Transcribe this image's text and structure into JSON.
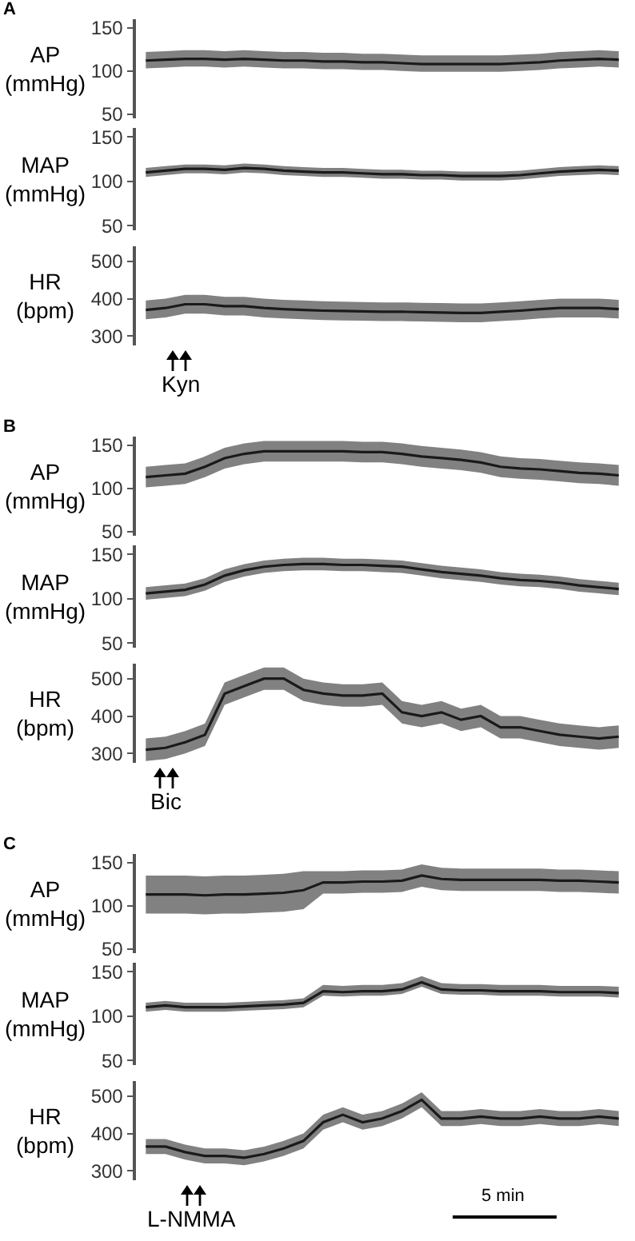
{
  "chart_data": [
    {
      "type": "line",
      "title": "A",
      "ylabel": "AP\n(mmHg)",
      "categories": [
        null,
        null,
        null,
        null,
        null,
        null,
        null,
        null,
        null,
        null,
        null,
        null,
        null,
        null,
        null,
        null,
        null,
        null,
        null,
        null,
        null,
        null,
        null,
        null,
        null
      ],
      "ylim": [
        45,
        160
      ],
      "yticks": [
        50,
        100,
        150
      ],
      "tick_labels": "y",
      "series": [
        {
          "color": "#1a1a1a",
          "values": [
            112,
            113,
            114,
            114,
            113,
            114,
            113,
            112,
            112,
            111,
            111,
            110,
            110,
            109,
            108,
            108,
            108,
            108,
            108,
            109,
            110,
            112,
            113,
            114,
            113
          ],
          "lower": [
            103,
            104,
            105,
            105,
            104,
            105,
            104,
            103,
            103,
            102,
            102,
            101,
            101,
            100,
            99,
            99,
            99,
            99,
            99,
            100,
            101,
            103,
            104,
            105,
            104
          ],
          "upper": [
            122,
            123,
            124,
            124,
            123,
            124,
            123,
            122,
            122,
            121,
            121,
            120,
            120,
            119,
            118,
            118,
            118,
            118,
            118,
            119,
            120,
            122,
            123,
            124,
            123
          ]
        }
      ]
    },
    {
      "type": "line",
      "ylabel": "MAP\n(mmHg)",
      "categories": [
        null,
        null,
        null,
        null,
        null,
        null,
        null,
        null,
        null,
        null,
        null,
        null,
        null,
        null,
        null,
        null,
        null,
        null,
        null,
        null,
        null,
        null,
        null,
        null,
        null
      ],
      "ylim": [
        45,
        160
      ],
      "yticks": [
        50,
        100,
        150
      ],
      "tick_labels": "y",
      "series": [
        {
          "color": "#1a1a1a",
          "values": [
            110,
            112,
            114,
            114,
            113,
            115,
            114,
            112,
            111,
            110,
            110,
            109,
            108,
            108,
            107,
            107,
            106,
            106,
            106,
            107,
            109,
            111,
            112,
            113,
            112
          ],
          "lower": [
            105,
            107,
            109,
            109,
            108,
            110,
            109,
            107,
            106,
            105,
            105,
            104,
            103,
            103,
            102,
            102,
            101,
            101,
            101,
            102,
            104,
            106,
            107,
            108,
            107
          ],
          "upper": [
            115,
            117,
            119,
            119,
            118,
            120,
            119,
            117,
            116,
            115,
            115,
            114,
            113,
            113,
            112,
            112,
            111,
            111,
            111,
            112,
            114,
            116,
            117,
            118,
            117
          ]
        }
      ]
    },
    {
      "type": "line",
      "ylabel": "HR\n(bpm)",
      "categories": [
        null,
        null,
        null,
        null,
        null,
        null,
        null,
        null,
        null,
        null,
        null,
        null,
        null,
        null,
        null,
        null,
        null,
        null,
        null,
        null,
        null,
        null,
        null,
        null,
        null
      ],
      "ylim": [
        275,
        540
      ],
      "yticks": [
        300,
        400,
        500
      ],
      "tick_labels": "y",
      "annotations": [
        "Kyn"
      ],
      "series": [
        {
          "color": "#1a1a1a",
          "values": [
            370,
            375,
            385,
            385,
            380,
            380,
            375,
            372,
            370,
            368,
            367,
            366,
            365,
            365,
            364,
            363,
            362,
            362,
            365,
            368,
            372,
            375,
            375,
            375,
            372
          ],
          "lower": [
            345,
            350,
            360,
            360,
            355,
            355,
            350,
            347,
            345,
            343,
            342,
            341,
            340,
            340,
            339,
            338,
            337,
            337,
            340,
            343,
            347,
            350,
            350,
            350,
            347
          ],
          "upper": [
            395,
            400,
            410,
            410,
            405,
            405,
            400,
            397,
            395,
            393,
            392,
            391,
            390,
            390,
            389,
            388,
            387,
            387,
            390,
            393,
            397,
            400,
            400,
            400,
            397
          ]
        }
      ]
    },
    {
      "type": "line",
      "title": "B",
      "ylabel": "AP\n(mmHg)",
      "categories": [
        null,
        null,
        null,
        null,
        null,
        null,
        null,
        null,
        null,
        null,
        null,
        null,
        null,
        null,
        null,
        null,
        null,
        null,
        null,
        null,
        null,
        null,
        null,
        null,
        null
      ],
      "ylim": [
        45,
        160
      ],
      "yticks": [
        50,
        100,
        150
      ],
      "tick_labels": "y",
      "series": [
        {
          "color": "#1a1a1a",
          "values": [
            113,
            115,
            117,
            125,
            135,
            140,
            143,
            143,
            143,
            143,
            143,
            142,
            142,
            140,
            137,
            135,
            133,
            130,
            125,
            123,
            122,
            120,
            118,
            117,
            115
          ],
          "lower": [
            101,
            103,
            105,
            113,
            123,
            128,
            131,
            131,
            131,
            131,
            131,
            130,
            130,
            128,
            125,
            123,
            121,
            118,
            113,
            111,
            110,
            108,
            106,
            105,
            103
          ],
          "upper": [
            125,
            127,
            129,
            137,
            147,
            152,
            155,
            155,
            155,
            155,
            155,
            154,
            154,
            152,
            149,
            147,
            145,
            142,
            137,
            135,
            134,
            132,
            130,
            129,
            127
          ]
        }
      ]
    },
    {
      "type": "line",
      "ylabel": "MAP\n(mmHg)",
      "categories": [
        null,
        null,
        null,
        null,
        null,
        null,
        null,
        null,
        null,
        null,
        null,
        null,
        null,
        null,
        null,
        null,
        null,
        null,
        null,
        null,
        null,
        null,
        null,
        null,
        null
      ],
      "ylim": [
        45,
        160
      ],
      "yticks": [
        50,
        100,
        150
      ],
      "tick_labels": "y",
      "series": [
        {
          "color": "#1a1a1a",
          "values": [
            106,
            108,
            110,
            116,
            126,
            132,
            136,
            138,
            139,
            139,
            138,
            138,
            137,
            136,
            133,
            130,
            128,
            126,
            123,
            121,
            120,
            118,
            115,
            113,
            111
          ],
          "lower": [
            99,
            101,
            103,
            109,
            119,
            125,
            129,
            131,
            132,
            132,
            131,
            131,
            130,
            129,
            126,
            123,
            121,
            119,
            116,
            114,
            113,
            111,
            108,
            106,
            104
          ],
          "upper": [
            113,
            115,
            117,
            123,
            133,
            139,
            143,
            145,
            146,
            146,
            145,
            145,
            144,
            143,
            140,
            137,
            135,
            133,
            130,
            128,
            127,
            125,
            122,
            120,
            118
          ]
        }
      ]
    },
    {
      "type": "line",
      "ylabel": "HR\n(bpm)",
      "categories": [
        null,
        null,
        null,
        null,
        null,
        null,
        null,
        null,
        null,
        null,
        null,
        null,
        null,
        null,
        null,
        null,
        null,
        null,
        null,
        null,
        null,
        null,
        null,
        null,
        null
      ],
      "ylim": [
        275,
        540
      ],
      "yticks": [
        300,
        400,
        500
      ],
      "tick_labels": "y",
      "annotations": [
        "Bic"
      ],
      "series": [
        {
          "color": "#1a1a1a",
          "values": [
            310,
            315,
            330,
            350,
            460,
            480,
            500,
            500,
            470,
            460,
            455,
            455,
            460,
            410,
            400,
            410,
            390,
            400,
            370,
            370,
            360,
            350,
            345,
            340,
            345
          ],
          "lower": [
            280,
            285,
            300,
            320,
            430,
            450,
            470,
            470,
            440,
            430,
            425,
            425,
            430,
            380,
            370,
            380,
            360,
            370,
            340,
            340,
            330,
            320,
            315,
            310,
            315
          ],
          "upper": [
            340,
            345,
            360,
            380,
            490,
            510,
            530,
            530,
            500,
            490,
            485,
            485,
            490,
            440,
            430,
            440,
            420,
            430,
            400,
            400,
            390,
            380,
            375,
            370,
            375
          ]
        }
      ]
    },
    {
      "type": "line",
      "title": "C",
      "ylabel": "AP\n(mmHg)",
      "categories": [
        null,
        null,
        null,
        null,
        null,
        null,
        null,
        null,
        null,
        null,
        null,
        null,
        null,
        null,
        null,
        null,
        null,
        null,
        null,
        null,
        null,
        null,
        null,
        null,
        null
      ],
      "ylim": [
        45,
        160
      ],
      "yticks": [
        50,
        100,
        150
      ],
      "tick_labels": "y",
      "series": [
        {
          "color": "#1a1a1a",
          "values": [
            113,
            113,
            113,
            112,
            113,
            113,
            114,
            115,
            118,
            127,
            127,
            128,
            128,
            129,
            135,
            131,
            130,
            130,
            130,
            130,
            130,
            129,
            129,
            128,
            127
          ],
          "lower": [
            91,
            91,
            91,
            90,
            91,
            91,
            92,
            93,
            96,
            114,
            114,
            115,
            115,
            116,
            122,
            118,
            117,
            117,
            117,
            117,
            117,
            116,
            116,
            115,
            114
          ],
          "upper": [
            135,
            135,
            135,
            134,
            135,
            135,
            136,
            137,
            140,
            140,
            140,
            141,
            141,
            142,
            148,
            144,
            143,
            143,
            143,
            143,
            143,
            142,
            142,
            141,
            140
          ]
        }
      ]
    },
    {
      "type": "line",
      "ylabel": "MAP\n(mmHg)",
      "categories": [
        null,
        null,
        null,
        null,
        null,
        null,
        null,
        null,
        null,
        null,
        null,
        null,
        null,
        null,
        null,
        null,
        null,
        null,
        null,
        null,
        null,
        null,
        null,
        null,
        null
      ],
      "ylim": [
        45,
        160
      ],
      "yticks": [
        50,
        100,
        150
      ],
      "tick_labels": "y",
      "series": [
        {
          "color": "#1a1a1a",
          "values": [
            110,
            112,
            110,
            110,
            110,
            111,
            112,
            113,
            115,
            128,
            127,
            128,
            128,
            130,
            138,
            130,
            129,
            129,
            128,
            128,
            128,
            127,
            127,
            127,
            126
          ],
          "lower": [
            105,
            107,
            105,
            105,
            105,
            106,
            107,
            108,
            110,
            123,
            122,
            123,
            123,
            125,
            133,
            125,
            124,
            124,
            123,
            123,
            123,
            122,
            122,
            122,
            121
          ],
          "upper": [
            115,
            117,
            115,
            115,
            115,
            116,
            117,
            118,
            120,
            135,
            134,
            135,
            135,
            137,
            145,
            137,
            136,
            136,
            135,
            135,
            135,
            134,
            134,
            134,
            133
          ]
        }
      ]
    },
    {
      "type": "line",
      "ylabel": "HR\n(bpm)",
      "categories": [
        null,
        null,
        null,
        null,
        null,
        null,
        null,
        null,
        null,
        null,
        null,
        null,
        null,
        null,
        null,
        null,
        null,
        null,
        null,
        null,
        null,
        null,
        null,
        null,
        null
      ],
      "ylim": [
        275,
        540
      ],
      "yticks": [
        300,
        400,
        500
      ],
      "tick_labels": "y",
      "annotations": [
        "L-NMMA",
        "5 min"
      ],
      "series": [
        {
          "color": "#1a1a1a",
          "values": [
            365,
            365,
            350,
            340,
            340,
            335,
            345,
            360,
            380,
            430,
            450,
            430,
            440,
            460,
            490,
            440,
            440,
            445,
            440,
            440,
            445,
            440,
            440,
            445,
            440
          ],
          "lower": [
            345,
            345,
            330,
            320,
            320,
            315,
            325,
            340,
            360,
            410,
            430,
            410,
            420,
            440,
            470,
            420,
            420,
            425,
            420,
            420,
            425,
            420,
            420,
            425,
            420
          ],
          "upper": [
            385,
            385,
            370,
            360,
            360,
            355,
            365,
            380,
            400,
            450,
            470,
            450,
            460,
            480,
            510,
            460,
            460,
            465,
            460,
            460,
            465,
            460,
            460,
            465,
            460
          ]
        }
      ]
    }
  ]
}
